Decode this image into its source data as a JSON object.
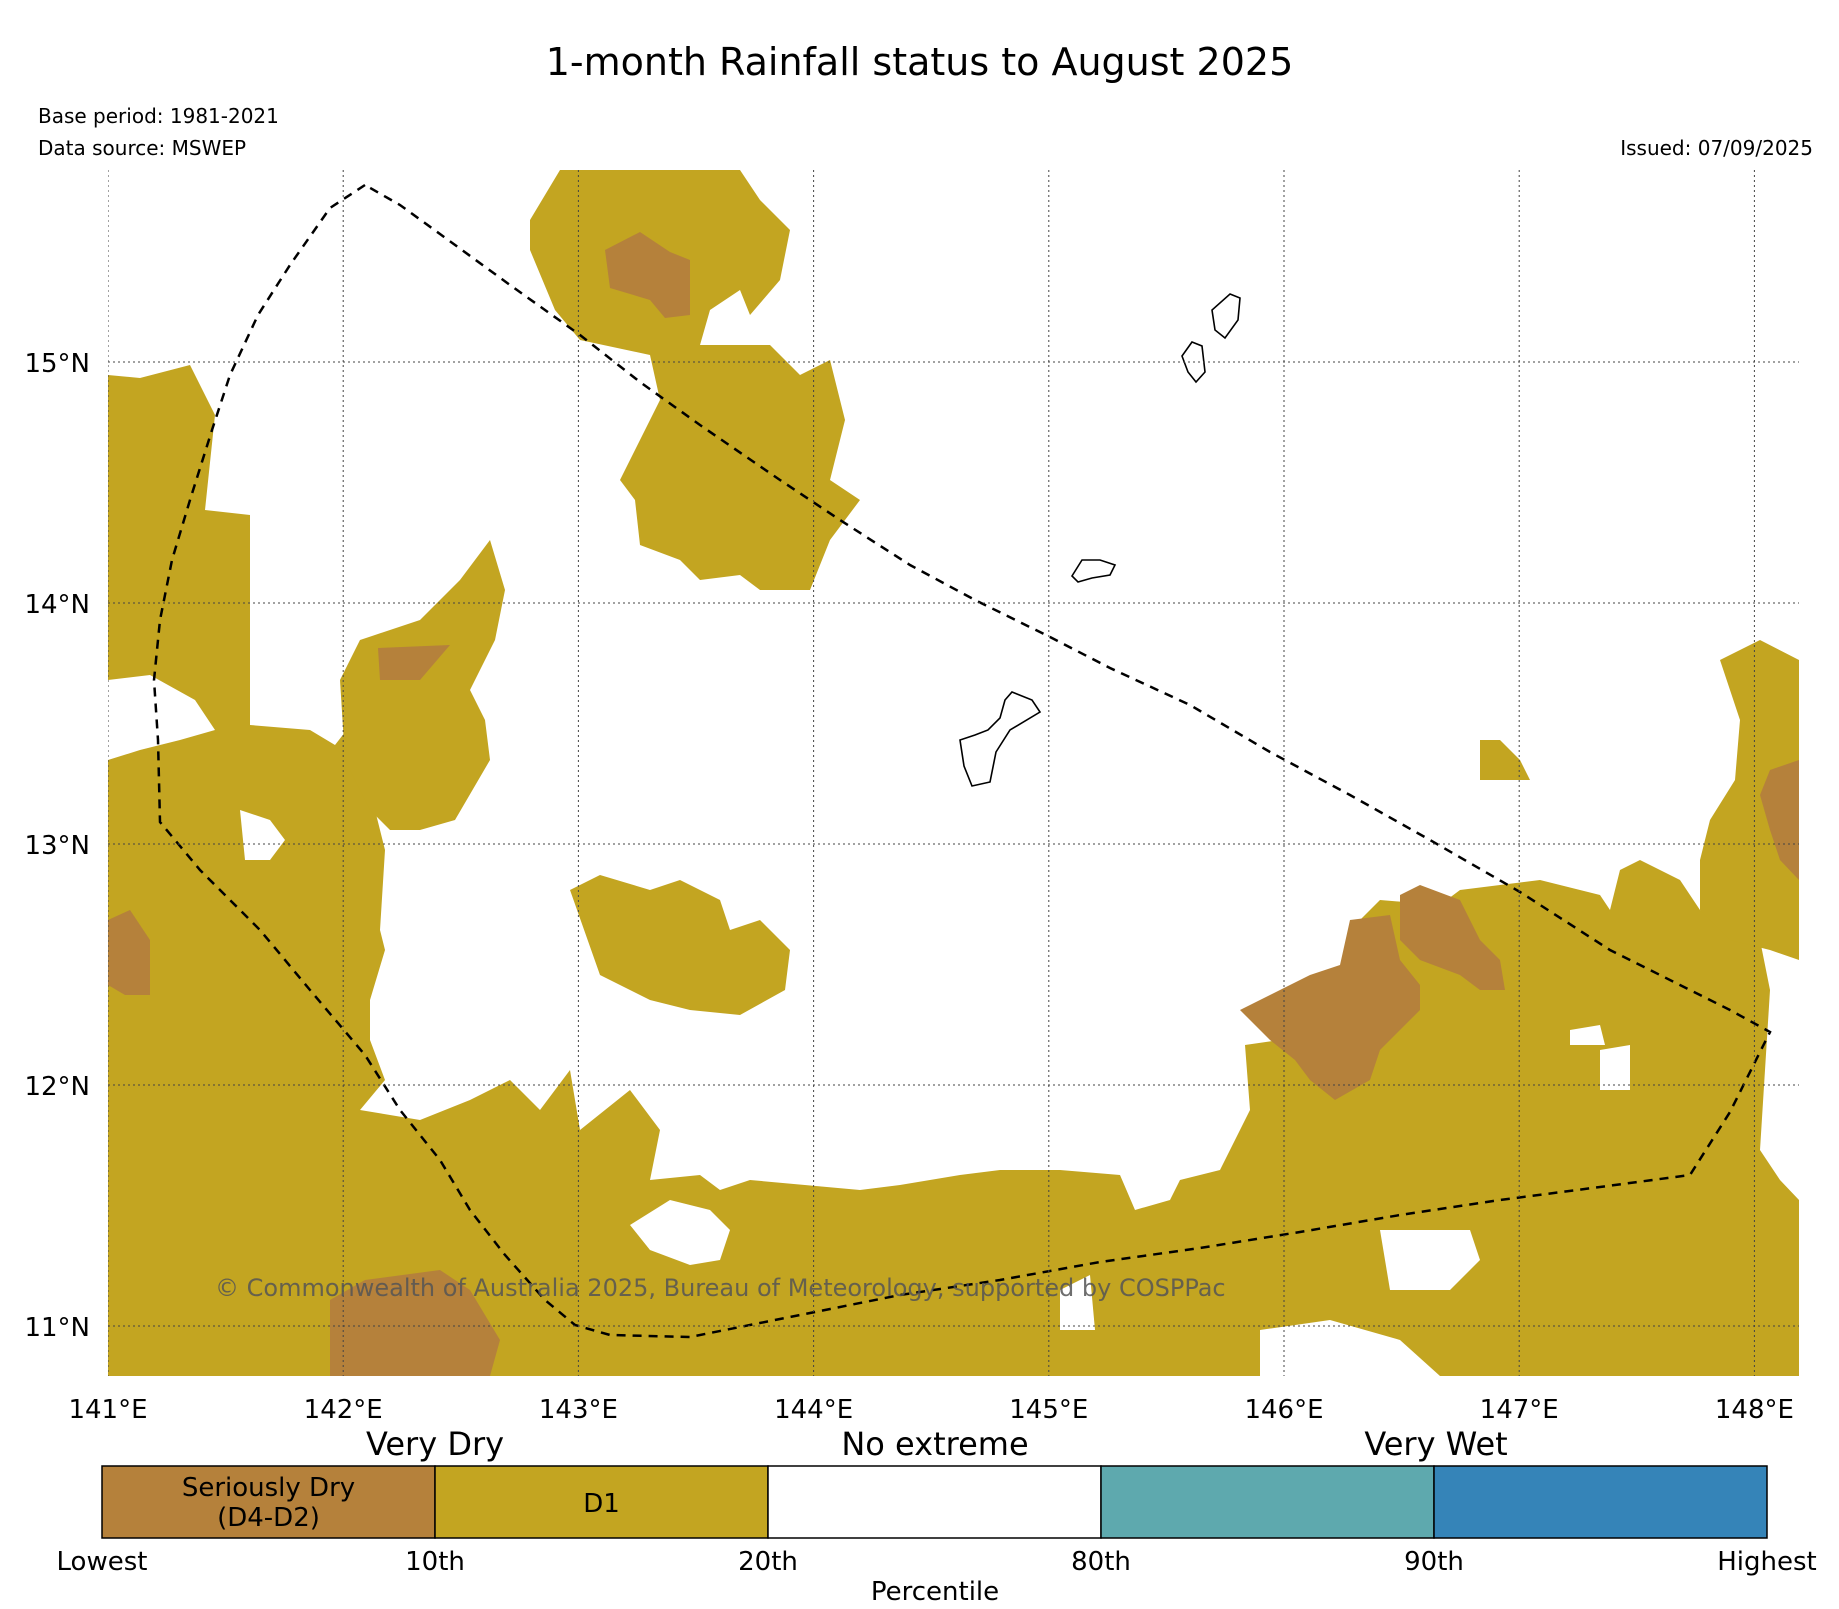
{
  "title": "1-month Rainfall status to August 2025",
  "base_period": "Base period: 1981-2021",
  "data_source": "Data source: MSWEP",
  "issued": "Issued: 07/09/2025",
  "copyright": "© Commonwealth of Australia 2025, Bureau of Meteorology, supported by COSPPac",
  "axes": {
    "lon_labels": [
      "141°E",
      "142°E",
      "143°E",
      "144°E",
      "145°E",
      "146°E",
      "147°E",
      "148°E"
    ],
    "lat_labels": [
      "15°N",
      "14°N",
      "13°N",
      "12°N",
      "11°N"
    ],
    "lon_range": [
      141.0,
      148.2
    ],
    "lat_range": [
      10.8,
      15.8
    ]
  },
  "legend": {
    "group_labels": [
      "Very Dry",
      "No extreme",
      "Very Wet"
    ],
    "categories": [
      {
        "label_line1": "Seriously Dry",
        "label_line2": "(D4-D2)",
        "color": "#b5813b"
      },
      {
        "label_line1": "D1",
        "label_line2": "",
        "color": "#c3a521"
      },
      {
        "label_line1": "",
        "label_line2": "",
        "color": "#ffffff"
      },
      {
        "label_line1": "",
        "label_line2": "",
        "color": "#5ea9ae"
      },
      {
        "label_line1": "",
        "label_line2": "",
        "color": "#3584b8"
      }
    ],
    "tick_labels": [
      "Lowest",
      "10th",
      "20th",
      "80th",
      "90th",
      "Highest"
    ],
    "axis_title": "Percentile"
  },
  "colors": {
    "d1": "#c3a521",
    "seriously_dry": "#b5813b",
    "grid": "#555555"
  }
}
